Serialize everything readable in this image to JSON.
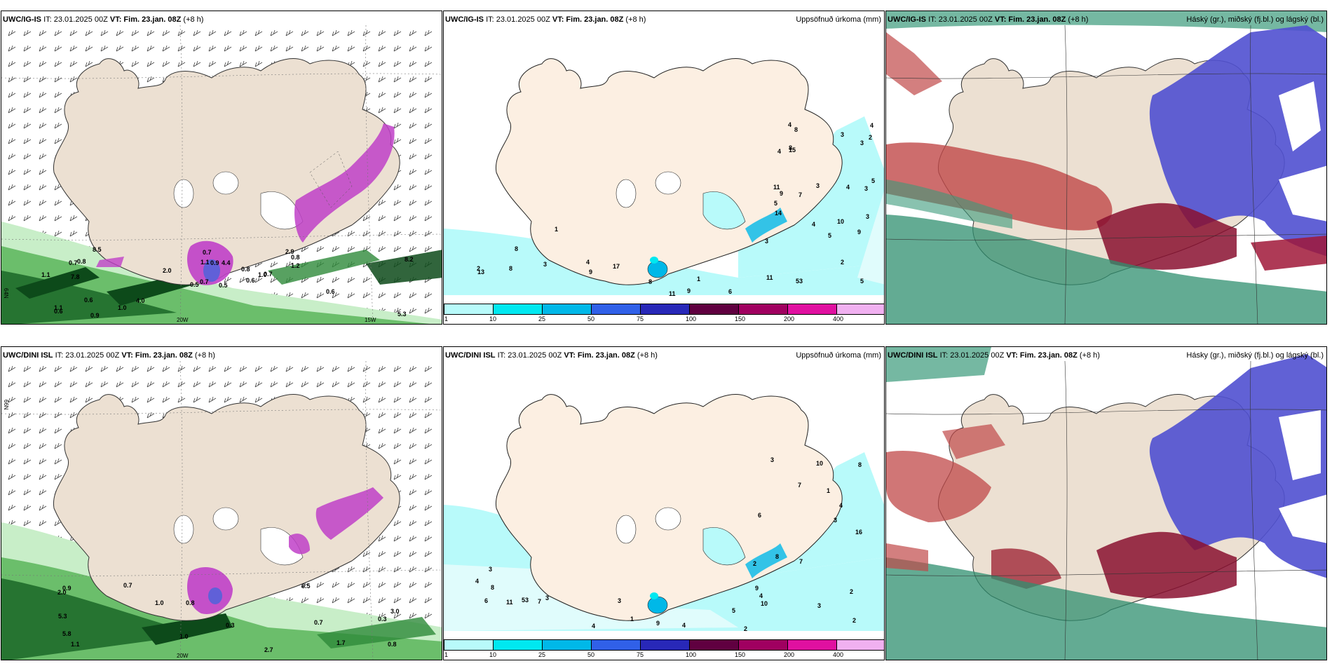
{
  "panels": {
    "top_left": {
      "model": "UWC/IG-IS",
      "it": "IT: 23.01.2025 00Z",
      "vt_label": "VT:",
      "vt": "Fim. 23.jan. 08Z",
      "lead": "(+8 h)"
    },
    "top_mid": {
      "model": "UWC/IG-IS",
      "it": "IT: 23.01.2025 00Z",
      "vt_label": "VT:",
      "vt": "Fim. 23.jan. 08Z",
      "lead": "(+8 h)",
      "right_title": "Uppsöfnuð úrkoma (mm)"
    },
    "top_right": {
      "model": "UWC/IG-IS",
      "it": "IT: 23.01.2025 00Z",
      "vt_label": "VT:",
      "vt": "Fim. 23.jan. 08Z",
      "lead": "(+8 h)",
      "right_title": "Háský (gr.), miðský (fj.bl.) og lágský (bl.)"
    },
    "bottom_left": {
      "model": "UWC/DINI ISL",
      "it": "IT: 23.01.2025 00Z",
      "vt_label": "VT:",
      "vt": "Fim. 23.jan. 08Z",
      "lead": "(+8 h)"
    },
    "bottom_mid": {
      "model": "UWC/DINI ISL",
      "it": "IT: 23.01.2025 00Z",
      "vt_label": "VT:",
      "vt": "Fim. 23.jan. 08Z",
      "lead": "(+8 h)",
      "right_title": "Uppsöfnuð úrkoma (mm)"
    },
    "bottom_right": {
      "model": "UWC/DINI ISL",
      "it": "IT: 23.01.2025 00Z",
      "vt_label": "VT:",
      "vt": "Fim. 23.jan. 08Z",
      "lead": "(+8 h)",
      "right_title": "Hásky (gr.), miðský (fj.bl.) og lágský (bl.)"
    }
  },
  "grid_labels": {
    "lat_66": "66N",
    "lat_64": "64N",
    "lon_20": "20W",
    "lon_15": "15W"
  },
  "colorbar": {
    "ticks": [
      "1",
      "10",
      "25",
      "50",
      "75",
      "100",
      "150",
      "200",
      "400"
    ],
    "colors": [
      "#b8fafa",
      "#00e8f0",
      "#00b8e8",
      "#3060e8",
      "#2828b8",
      "#600040",
      "#a00060",
      "#e010a0",
      "#f0b0f0"
    ]
  },
  "precip_labels_top": [
    "1",
    "3",
    "4",
    "11",
    "5",
    "3",
    "4",
    "13",
    "14",
    "10",
    "11",
    "5",
    "9",
    "7",
    "4",
    "4",
    "4",
    "6",
    "3",
    "11",
    "8",
    "5",
    "5",
    "3",
    "3",
    "8",
    "2",
    "2",
    "1",
    "2",
    "4",
    "8",
    "9",
    "9",
    "15",
    "3",
    "3",
    "8",
    "53",
    "8",
    "9",
    "17"
  ],
  "precip_labels_bottom": [
    "1",
    "3",
    "4",
    "3",
    "4",
    "1",
    "9",
    "10",
    "9",
    "8",
    "5",
    "10",
    "4",
    "2",
    "7",
    "6",
    "3",
    "3",
    "2",
    "4",
    "3",
    "4",
    "7",
    "6",
    "7",
    "8",
    "8",
    "2",
    "53",
    "11",
    "16",
    "3",
    "2"
  ],
  "wind_values_top": [
    "0.5",
    "0.7",
    "0.7",
    "1.1",
    "1.0",
    "4.0",
    "2.9",
    "4.4",
    "0.8",
    "0.6",
    "8.5",
    "5.3",
    "7.8",
    "8.2",
    "0.5",
    "1.2",
    "0.9",
    "1.1",
    "0.8",
    "0.6",
    "2.0",
    "0.6",
    "1.0",
    "0.9",
    "0.7",
    "0.6",
    "0.8",
    "0.7",
    "1.1"
  ],
  "wind_values_bottom": [
    "0.7",
    "0.3",
    "1.1",
    "0.7",
    "0.8",
    "1.7",
    "5.8",
    "6.5",
    "1.0",
    "2.7",
    "2.0",
    "5.3",
    "0.9",
    "0.8",
    "1.0",
    "3.0",
    "0.3"
  ]
}
